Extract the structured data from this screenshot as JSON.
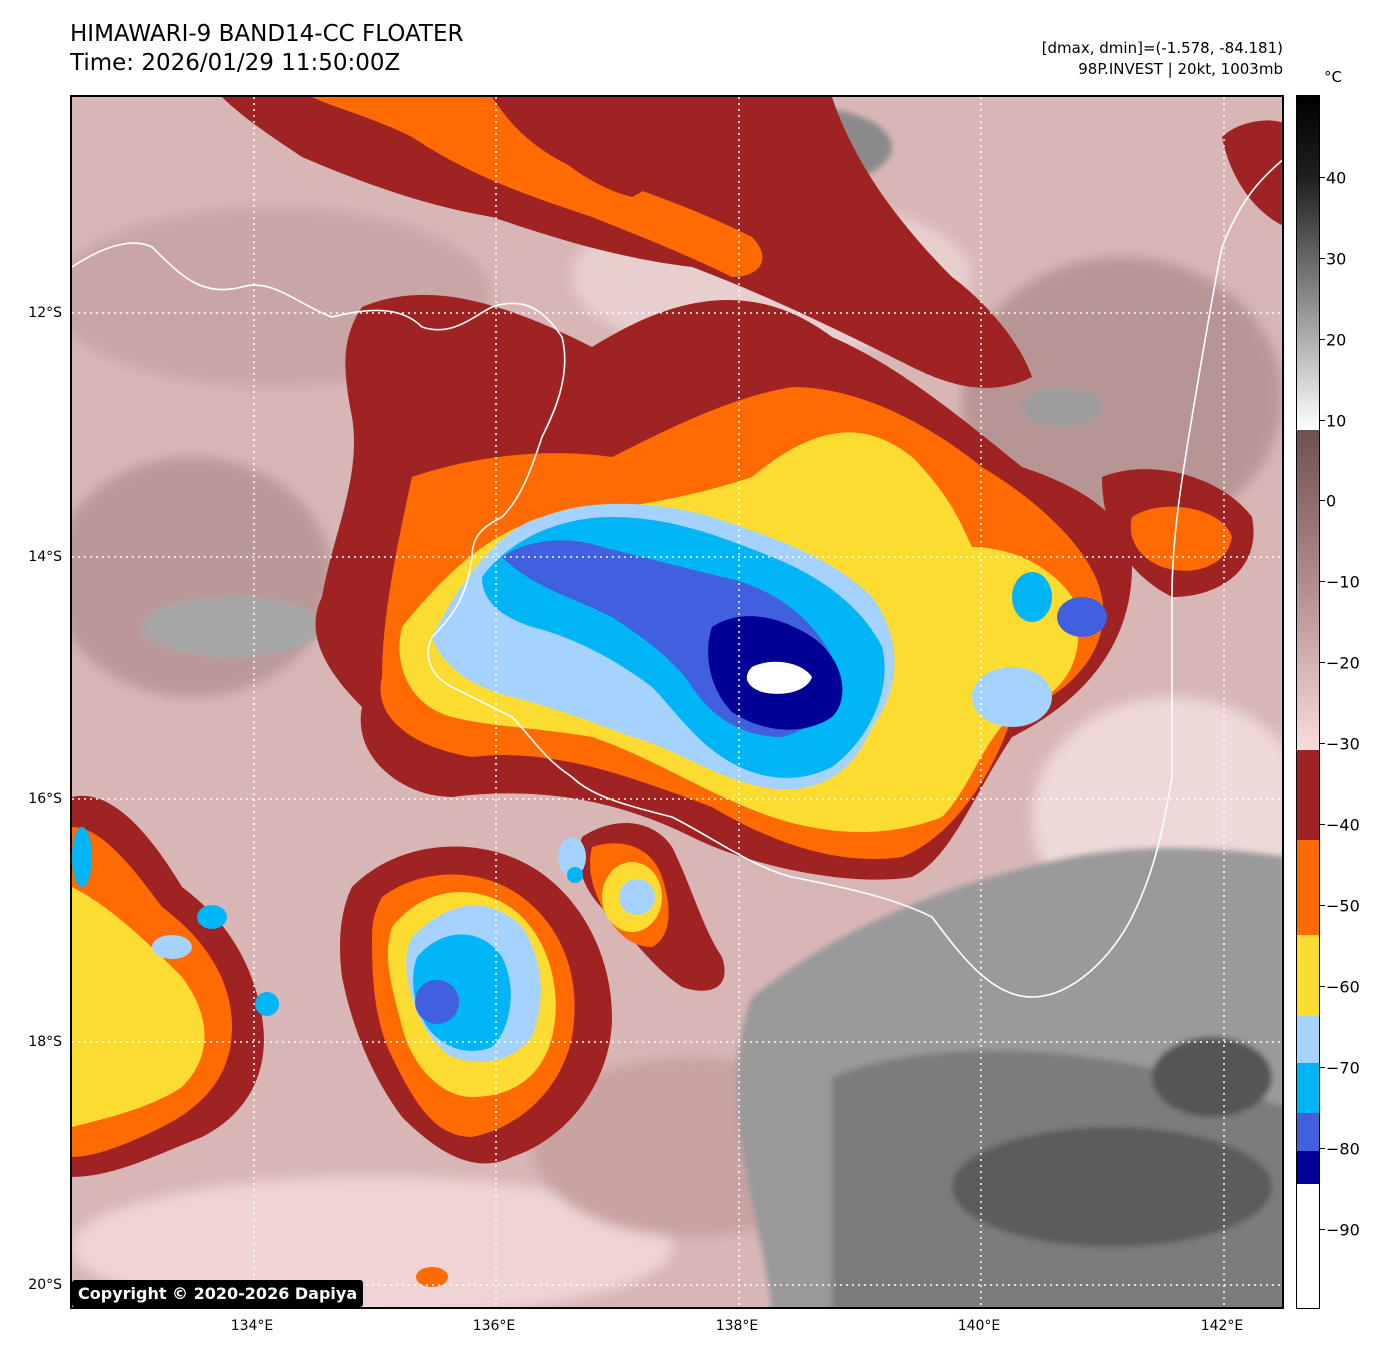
{
  "header": {
    "title_line1": "HIMAWARI-9 BAND14-CC FLOATER",
    "title_line2": "Time: 2026/01/29 11:50:00Z",
    "meta_line1": "[dmax, dmin]=(-1.578, -84.181)",
    "meta_line2": "98P.INVEST | 20kt, 1003mb"
  },
  "map": {
    "copyright": "Copyright © 2020-2026 Dapiya",
    "latitude_labels": [
      "12°S",
      "14°S",
      "16°S",
      "18°S",
      "20°S"
    ],
    "longitude_labels": [
      "134°E",
      "136°E",
      "138°E",
      "140°E",
      "142°E"
    ],
    "storm_id": "98P.INVEST"
  },
  "colorbar": {
    "unit": "°C",
    "tick_labels": [
      "40",
      "30",
      "20",
      "10",
      "0",
      "−10",
      "−20",
      "−30",
      "−40",
      "−50",
      "−60",
      "−70",
      "−80",
      "−90"
    ],
    "colors": {
      "above_40": "#000000",
      "gray_top": "#202020",
      "white": "#ffffff",
      "brown_top": "#6f5050",
      "pink_low": "#f8dcdc",
      "dark_red": "#a02323",
      "orange": "#ff6b00",
      "yellow": "#fddc32",
      "light_blue": "#a6d2ff",
      "cyan": "#00b5f5",
      "royal_blue": "#4060e0",
      "navy": "#000096",
      "coldest": "#ffffff"
    }
  }
}
